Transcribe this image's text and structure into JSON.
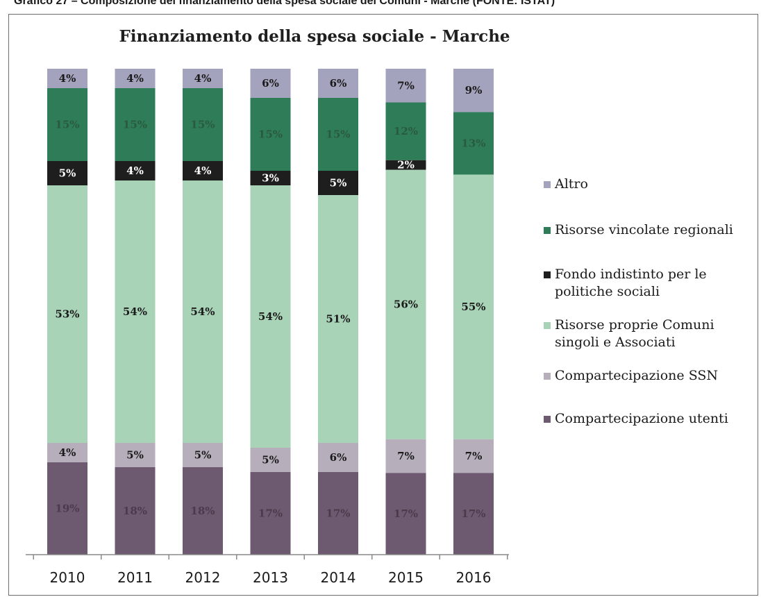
{
  "caption": "Grafico 27 – Composizione del finanziamento della spesa sociale dei Comuni - Marche (FONTE: ISTAT)",
  "chart_data": {
    "type": "bar",
    "stacked": true,
    "title": "Finanziamento della spesa sociale - Marche",
    "xlabel": "",
    "ylabel": "",
    "categories": [
      "2010",
      "2011",
      "2012",
      "2013",
      "2014",
      "2015",
      "2016"
    ],
    "series": [
      {
        "name": "Compartecipazione utenti",
        "color": "#6e5a70",
        "label_color": "#4a3a4c",
        "values": [
          19,
          18,
          18,
          17,
          17,
          17,
          17
        ]
      },
      {
        "name": "Compartecipazione SSN",
        "color": "#b7aebb",
        "label_color": "#1a1a1a",
        "values": [
          4,
          5,
          5,
          5,
          6,
          7,
          7
        ]
      },
      {
        "name": "Risorse proprie Comuni singoli e Associati",
        "color": "#a9d3b7",
        "label_color": "#1a1a1a",
        "values": [
          53,
          54,
          54,
          54,
          51,
          56,
          55
        ]
      },
      {
        "name": "Fondo indistinto per le politiche sociali",
        "color": "#1e1e1e",
        "label_color": "#ffffff",
        "values": [
          5,
          4,
          4,
          3,
          5,
          2,
          0
        ]
      },
      {
        "name": "Risorse vincolate regionali",
        "color": "#2f7d58",
        "label_color": "#2a5a3e",
        "values": [
          15,
          15,
          15,
          15,
          15,
          12,
          13
        ]
      },
      {
        "name": "Altro",
        "color": "#a3a3bd",
        "label_color": "#1a1a1a",
        "values": [
          4,
          4,
          4,
          6,
          6,
          7,
          9
        ]
      }
    ],
    "legend_position": "right",
    "legend_order": [
      "Altro",
      "Risorse vincolate regionali",
      "Fondo indistinto per le politiche sociali",
      "Risorse proprie Comuni singoli e Associati",
      "Compartecipazione SSN",
      "Compartecipazione utenti"
    ],
    "legend_lines": {
      "Altro": [
        "Altro"
      ],
      "Risorse vincolate regionali": [
        "Risorse vincolate regionali"
      ],
      "Fondo indistinto per le politiche sociali": [
        "Fondo indistinto per le",
        "politiche sociali"
      ],
      "Risorse proprie Comuni singoli e Associati": [
        "Risorse proprie Comuni",
        "singoli e Associati"
      ],
      "Compartecipazione SSN": [
        "Compartecipazione SSN"
      ],
      "Compartecipazione utenti": [
        "Compartecipazione utenti"
      ]
    },
    "value_suffix": "%",
    "grid": false
  }
}
